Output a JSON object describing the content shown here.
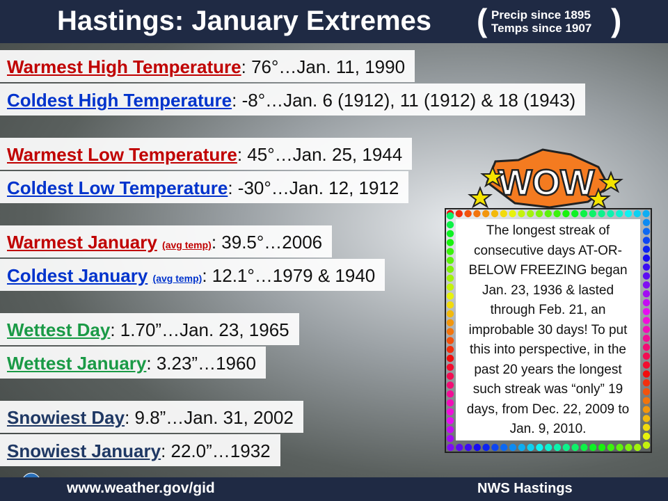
{
  "header": {
    "title": "Hastings: January Extremes",
    "open": "(",
    "close": ")",
    "notes": [
      "Precip since 1895",
      "Temps since 1907"
    ]
  },
  "records": [
    {
      "label": "Warmest High Temperature",
      "value": ": 76°…Jan. 11, 1990",
      "color": "#c00000",
      "top": true
    },
    {
      "label": "Coldest High Temperature",
      "value": ": -8°…Jan. 6 (1912), 11 (1912) & 18 (1943)",
      "color": "#0033cc"
    },
    {
      "label": "Warmest Low Temperature",
      "value": ": 45°…Jan. 25, 1944",
      "color": "#c00000",
      "top": true
    },
    {
      "label": "Coldest Low Temperature",
      "value": ": -30°…Jan. 12, 1912",
      "color": "#0033cc"
    },
    {
      "label": "Warmest January",
      "qualifier": "(avg temp)",
      "value": ": 39.5°…2006",
      "color": "#c00000",
      "top": true
    },
    {
      "label": "Coldest January",
      "qualifier": "(avg temp)",
      "value": ": 12.1°…1979 & 1940",
      "color": "#0033cc"
    },
    {
      "label": "Wettest Day",
      "value": ": 1.70”…Jan. 23, 1965",
      "color": "#1a9a46",
      "top": true
    },
    {
      "label": "Wettest January",
      "value": ": 3.23”…1960",
      "color": "#1a9a46"
    },
    {
      "label": "Snowiest Day",
      "value": ": 9.8”…Jan. 31, 2002",
      "color": "#1f3864",
      "top": true
    },
    {
      "label": "Snowiest January",
      "value": ": 22.0”…1932",
      "color": "#1f3864"
    }
  ],
  "callout": {
    "badge": "WOW",
    "text": "The longest streak of consecutive days AT-OR-BELOW FREEZING began Jan. 23, 1936 & lasted through Feb. 21, an improbable 30 days! To put this into perspective, in the past 20 years the longest such streak was “only” 19 days, from Dec. 22, 2009 to Jan. 9, 2010."
  },
  "footer": {
    "url": "www.weather.gov/gid",
    "office": "NWS Hastings"
  }
}
